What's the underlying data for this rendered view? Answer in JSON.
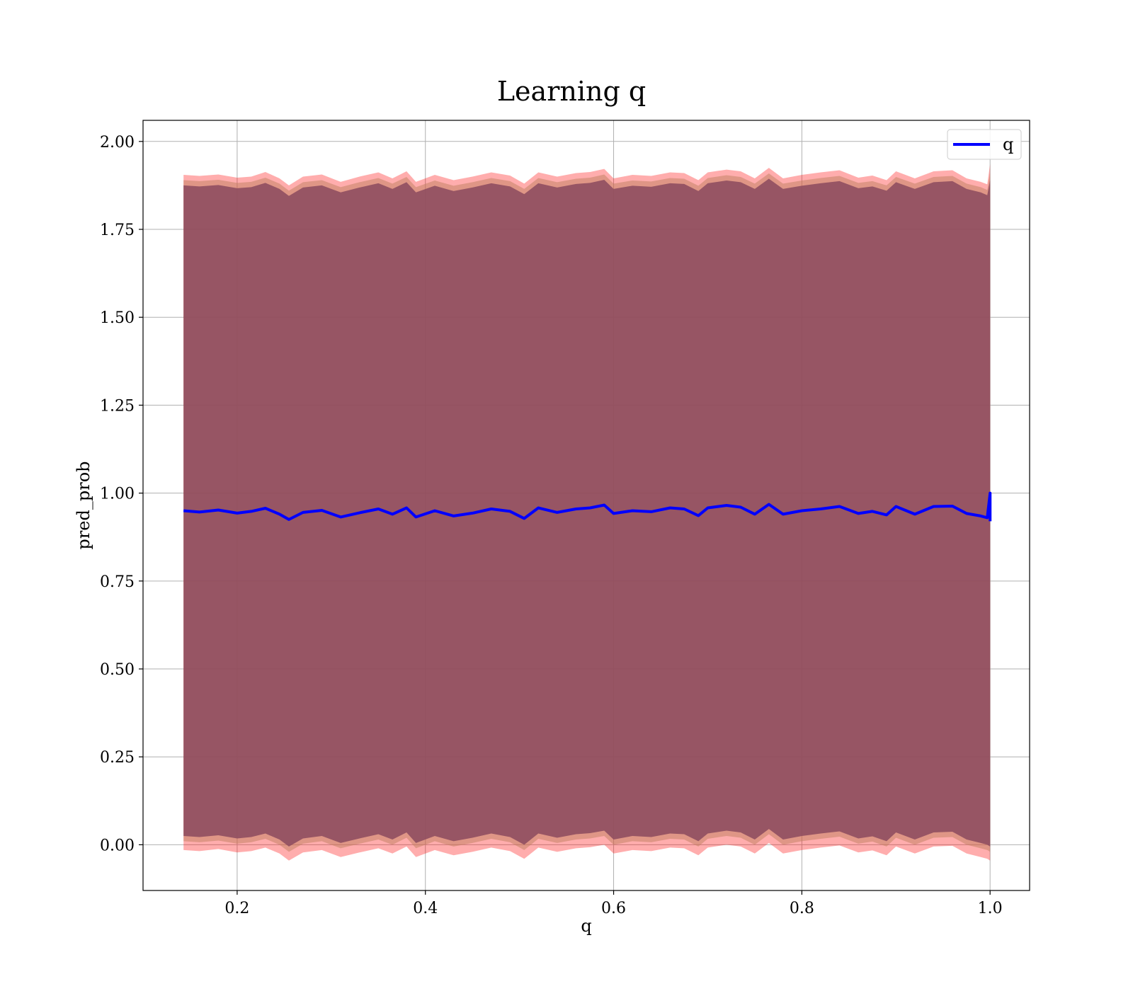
{
  "chart_data": {
    "type": "line",
    "title": "Learning q",
    "xlabel": "q",
    "ylabel": "pred_prob",
    "xlim": [
      0.1,
      1.042
    ],
    "ylim": [
      -0.13,
      2.06
    ],
    "x_ticks": [
      "0.2",
      "0.4",
      "0.6",
      "0.8",
      "1.0"
    ],
    "x_tick_values": [
      0.2,
      0.4,
      0.6,
      0.8,
      1.0
    ],
    "y_ticks": [
      "0.00",
      "0.25",
      "0.50",
      "0.75",
      "1.00",
      "1.25",
      "1.50",
      "1.75",
      "2.00"
    ],
    "y_tick_values": [
      0.0,
      0.25,
      0.5,
      0.75,
      1.0,
      1.25,
      1.5,
      1.75,
      2.0
    ],
    "grid": true,
    "legend": {
      "position": "top-right",
      "entries": [
        "q"
      ]
    },
    "x": [
      0.143,
      0.16,
      0.18,
      0.2,
      0.215,
      0.23,
      0.245,
      0.255,
      0.27,
      0.29,
      0.31,
      0.33,
      0.35,
      0.365,
      0.38,
      0.39,
      0.41,
      0.43,
      0.45,
      0.47,
      0.49,
      0.505,
      0.52,
      0.54,
      0.56,
      0.575,
      0.59,
      0.6,
      0.62,
      0.64,
      0.66,
      0.675,
      0.69,
      0.7,
      0.72,
      0.735,
      0.75,
      0.765,
      0.78,
      0.8,
      0.82,
      0.84,
      0.86,
      0.875,
      0.89,
      0.9,
      0.92,
      0.94,
      0.96,
      0.975,
      0.99,
      0.997,
      1.0
    ],
    "series": [
      {
        "name": "q",
        "color": "#0000ff",
        "values": [
          0.95,
          0.946,
          0.952,
          0.943,
          0.948,
          0.957,
          0.94,
          0.925,
          0.945,
          0.951,
          0.932,
          0.944,
          0.955,
          0.94,
          0.958,
          0.932,
          0.95,
          0.935,
          0.943,
          0.955,
          0.948,
          0.928,
          0.958,
          0.945,
          0.955,
          0.958,
          0.966,
          0.942,
          0.95,
          0.947,
          0.958,
          0.955,
          0.936,
          0.958,
          0.965,
          0.96,
          0.94,
          0.968,
          0.94,
          0.95,
          0.955,
          0.962,
          0.942,
          0.948,
          0.938,
          0.962,
          0.94,
          0.962,
          0.963,
          0.942,
          0.935,
          0.93,
          1.0
        ]
      }
    ],
    "bands": [
      {
        "color": "#ff0000",
        "opacity": 0.32,
        "upper": [
          1.905,
          1.902,
          1.906,
          1.897,
          1.9,
          1.913,
          1.895,
          1.875,
          1.9,
          1.906,
          1.885,
          1.9,
          1.912,
          1.895,
          1.915,
          1.885,
          1.905,
          1.89,
          1.9,
          1.912,
          1.903,
          1.88,
          1.912,
          1.9,
          1.91,
          1.913,
          1.922,
          1.895,
          1.905,
          1.902,
          1.912,
          1.91,
          1.89,
          1.912,
          1.92,
          1.915,
          1.895,
          1.925,
          1.895,
          1.905,
          1.912,
          1.918,
          1.897,
          1.903,
          1.89,
          1.915,
          1.895,
          1.915,
          1.918,
          1.895,
          1.885,
          1.878,
          1.935
        ],
        "lower": [
          -0.015,
          -0.018,
          -0.012,
          -0.022,
          -0.018,
          -0.008,
          -0.025,
          -0.045,
          -0.022,
          -0.015,
          -0.035,
          -0.022,
          -0.01,
          -0.025,
          -0.005,
          -0.035,
          -0.015,
          -0.03,
          -0.02,
          -0.008,
          -0.018,
          -0.04,
          -0.008,
          -0.02,
          -0.01,
          -0.007,
          0.0,
          -0.025,
          -0.015,
          -0.018,
          -0.008,
          -0.01,
          -0.03,
          -0.008,
          0.0,
          -0.005,
          -0.025,
          0.005,
          -0.025,
          -0.015,
          -0.008,
          -0.002,
          -0.022,
          -0.016,
          -0.03,
          -0.005,
          -0.025,
          -0.005,
          -0.003,
          -0.025,
          -0.035,
          -0.04,
          -0.045
        ]
      },
      {
        "color": "#bf8060",
        "opacity": 0.5,
        "upper": [
          1.89,
          1.887,
          1.891,
          1.882,
          1.885,
          1.897,
          1.88,
          1.86,
          1.884,
          1.89,
          1.87,
          1.884,
          1.896,
          1.88,
          1.899,
          1.87,
          1.889,
          1.874,
          1.884,
          1.896,
          1.887,
          1.865,
          1.896,
          1.884,
          1.894,
          1.897,
          1.906,
          1.88,
          1.889,
          1.886,
          1.896,
          1.894,
          1.874,
          1.896,
          1.904,
          1.899,
          1.88,
          1.909,
          1.88,
          1.889,
          1.896,
          1.902,
          1.882,
          1.887,
          1.875,
          1.899,
          1.88,
          1.899,
          1.902,
          1.88,
          1.87,
          1.862,
          1.91
        ],
        "lower": [
          0.01,
          0.007,
          0.012,
          0.003,
          0.007,
          0.017,
          0.0,
          -0.02,
          0.003,
          0.01,
          -0.01,
          0.003,
          0.015,
          0.0,
          0.02,
          -0.01,
          0.01,
          -0.005,
          0.005,
          0.017,
          0.007,
          -0.015,
          0.017,
          0.005,
          0.015,
          0.018,
          0.025,
          0.0,
          0.01,
          0.007,
          0.017,
          0.015,
          -0.005,
          0.017,
          0.025,
          0.02,
          0.0,
          0.03,
          0.0,
          0.01,
          0.017,
          0.023,
          0.003,
          0.009,
          -0.005,
          0.02,
          0.0,
          0.02,
          0.022,
          0.0,
          -0.01,
          -0.015,
          -0.02
        ]
      },
      {
        "color": "#8b4a5e",
        "opacity": 0.85,
        "upper": [
          1.875,
          1.872,
          1.876,
          1.867,
          1.87,
          1.882,
          1.865,
          1.845,
          1.869,
          1.875,
          1.855,
          1.869,
          1.881,
          1.865,
          1.884,
          1.855,
          1.874,
          1.859,
          1.869,
          1.881,
          1.872,
          1.85,
          1.881,
          1.869,
          1.879,
          1.882,
          1.891,
          1.865,
          1.874,
          1.871,
          1.881,
          1.879,
          1.859,
          1.881,
          1.889,
          1.884,
          1.865,
          1.894,
          1.865,
          1.874,
          1.881,
          1.887,
          1.867,
          1.872,
          1.86,
          1.884,
          1.865,
          1.884,
          1.887,
          1.865,
          1.855,
          1.847,
          1.89
        ],
        "lower": [
          0.025,
          0.022,
          0.027,
          0.018,
          0.022,
          0.032,
          0.015,
          -0.005,
          0.018,
          0.025,
          0.005,
          0.018,
          0.03,
          0.015,
          0.035,
          0.005,
          0.025,
          0.01,
          0.02,
          0.032,
          0.022,
          0.0,
          0.032,
          0.02,
          0.03,
          0.033,
          0.04,
          0.015,
          0.025,
          0.022,
          0.032,
          0.03,
          0.01,
          0.032,
          0.04,
          0.035,
          0.015,
          0.045,
          0.015,
          0.025,
          0.032,
          0.038,
          0.018,
          0.024,
          0.01,
          0.035,
          0.015,
          0.035,
          0.037,
          0.015,
          0.005,
          0.0,
          -0.005
        ]
      }
    ]
  }
}
